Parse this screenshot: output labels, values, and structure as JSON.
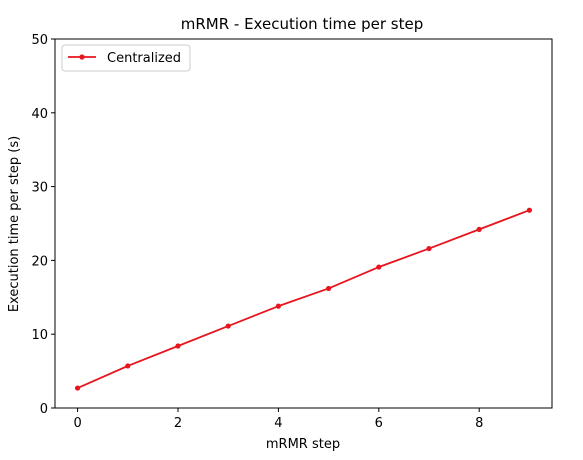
{
  "chart_data": {
    "type": "line",
    "title": "mRMR - Execution time per step",
    "xlabel": "mRMR step",
    "ylabel": "Execution time per step (s)",
    "xlim": [
      -0.45,
      9.45
    ],
    "ylim": [
      0,
      50
    ],
    "x_ticks": [
      0,
      2,
      4,
      6,
      8
    ],
    "y_ticks": [
      0,
      10,
      20,
      30,
      40,
      50
    ],
    "grid": false,
    "legend_position": "upper-left",
    "series": [
      {
        "name": "Centralized",
        "color": "#e8141e",
        "marker": "circle",
        "x": [
          0,
          1,
          2,
          3,
          4,
          5,
          6,
          7,
          8,
          9
        ],
        "y": [
          2.7,
          5.7,
          8.4,
          11.1,
          13.8,
          16.2,
          19.1,
          21.6,
          24.2,
          26.8
        ]
      }
    ]
  }
}
